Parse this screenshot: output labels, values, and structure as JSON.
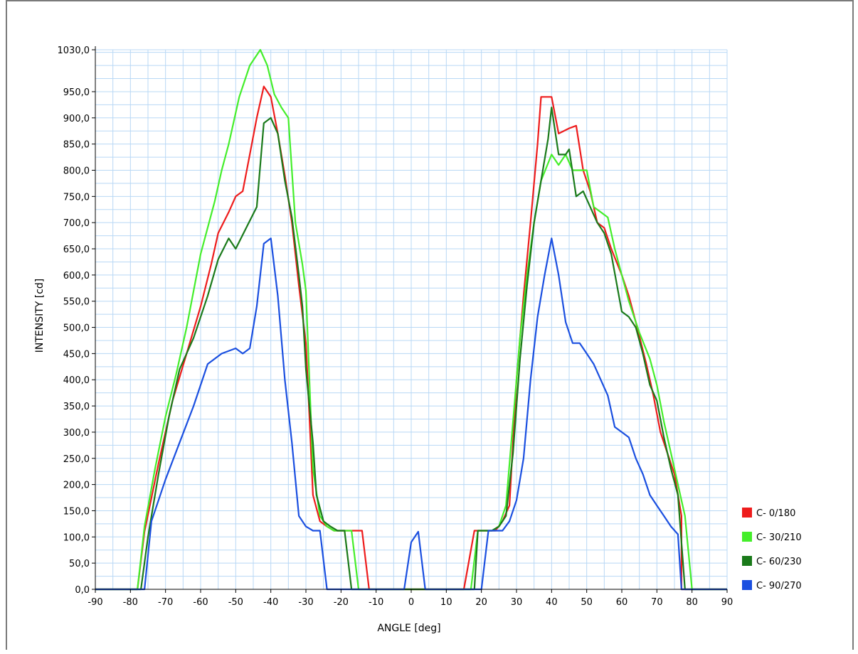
{
  "chart_data": {
    "type": "line",
    "xlabel": "ANGLE [deg]",
    "ylabel": "INTENSITY [cd]",
    "xlim": [
      -90,
      90
    ],
    "ylim": [
      0,
      1030
    ],
    "x_ticks": [
      -90,
      -80,
      -70,
      -60,
      -50,
      -40,
      -30,
      -20,
      -10,
      0,
      10,
      20,
      30,
      40,
      50,
      60,
      70,
      80,
      90
    ],
    "x_tick_labels": [
      "-90",
      "-80",
      "-70",
      "-60",
      "-50",
      "-40",
      "-30",
      "-20",
      "-10",
      "0",
      "10",
      "20",
      "30",
      "40",
      "50",
      "60",
      "70",
      "80",
      "90"
    ],
    "y_ticks": [
      0,
      50,
      100,
      150,
      200,
      250,
      300,
      350,
      400,
      450,
      500,
      550,
      600,
      650,
      700,
      750,
      800,
      850,
      900,
      950,
      1030
    ],
    "y_tick_labels": [
      "0,0",
      "50,0",
      "100,0",
      "150,0",
      "200,0",
      "250,0",
      "300,0",
      "350,0",
      "400,0",
      "450,0",
      "500,0",
      "550,0",
      "600,0",
      "650,0",
      "700,0",
      "750,0",
      "800,0",
      "850,0",
      "900,0",
      "950,0",
      "1030,0"
    ],
    "grid": true,
    "legend_position": "right-bottom",
    "series": [
      {
        "name": "C- 0/180",
        "color": "#ee1c1c",
        "points": [
          [
            -90,
            0
          ],
          [
            -78,
            0
          ],
          [
            -76,
            110
          ],
          [
            -72,
            240
          ],
          [
            -68,
            360
          ],
          [
            -64,
            450
          ],
          [
            -60,
            540
          ],
          [
            -57,
            620
          ],
          [
            -55,
            680
          ],
          [
            -52,
            720
          ],
          [
            -50,
            750
          ],
          [
            -48,
            760
          ],
          [
            -46,
            830
          ],
          [
            -44,
            900
          ],
          [
            -42,
            960
          ],
          [
            -40,
            940
          ],
          [
            -38,
            870
          ],
          [
            -36,
            790
          ],
          [
            -34,
            700
          ],
          [
            -32,
            580
          ],
          [
            -30,
            470
          ],
          [
            -29,
            330
          ],
          [
            -28,
            180
          ],
          [
            -26,
            130
          ],
          [
            -24,
            120
          ],
          [
            -22,
            112
          ],
          [
            -20,
            112
          ],
          [
            -17,
            112
          ],
          [
            -16,
            112
          ],
          [
            -14,
            112
          ],
          [
            -12,
            0
          ],
          [
            -10,
            0
          ],
          [
            15,
            0
          ],
          [
            18,
            112
          ],
          [
            20,
            112
          ],
          [
            22,
            112
          ],
          [
            24,
            112
          ],
          [
            26,
            130
          ],
          [
            28,
            160
          ],
          [
            30,
            400
          ],
          [
            32,
            560
          ],
          [
            34,
            700
          ],
          [
            36,
            850
          ],
          [
            37,
            940
          ],
          [
            38,
            940
          ],
          [
            40,
            940
          ],
          [
            42,
            870
          ],
          [
            45,
            880
          ],
          [
            47,
            885
          ],
          [
            49,
            800
          ],
          [
            51,
            760
          ],
          [
            53,
            700
          ],
          [
            55,
            690
          ],
          [
            57,
            650
          ],
          [
            60,
            600
          ],
          [
            62,
            560
          ],
          [
            64,
            510
          ],
          [
            67,
            430
          ],
          [
            69,
            370
          ],
          [
            71,
            300
          ],
          [
            73,
            260
          ],
          [
            75,
            220
          ],
          [
            77,
            140
          ],
          [
            77,
            0
          ],
          [
            90,
            0
          ]
        ]
      },
      {
        "name": "C- 30/210",
        "color": "#44ee2a",
        "points": [
          [
            -90,
            0
          ],
          [
            -78,
            0
          ],
          [
            -76,
            120
          ],
          [
            -73,
            230
          ],
          [
            -70,
            330
          ],
          [
            -67,
            410
          ],
          [
            -64,
            500
          ],
          [
            -60,
            640
          ],
          [
            -56,
            740
          ],
          [
            -54,
            800
          ],
          [
            -52,
            850
          ],
          [
            -49,
            940
          ],
          [
            -46,
            1000
          ],
          [
            -43,
            1030
          ],
          [
            -41,
            1000
          ],
          [
            -39,
            945
          ],
          [
            -37,
            920
          ],
          [
            -35,
            900
          ],
          [
            -33,
            700
          ],
          [
            -31,
            620
          ],
          [
            -30,
            570
          ],
          [
            -29,
            400
          ],
          [
            -28,
            230
          ],
          [
            -26,
            140
          ],
          [
            -24,
            120
          ],
          [
            -22,
            112
          ],
          [
            -20,
            112
          ],
          [
            -18,
            112
          ],
          [
            -17,
            112
          ],
          [
            -15,
            0
          ],
          [
            -12,
            0
          ],
          [
            15,
            0
          ],
          [
            17,
            0
          ],
          [
            19,
            112
          ],
          [
            21,
            112
          ],
          [
            23,
            112
          ],
          [
            25,
            120
          ],
          [
            27,
            160
          ],
          [
            29,
            320
          ],
          [
            31,
            480
          ],
          [
            33,
            600
          ],
          [
            35,
            700
          ],
          [
            37,
            780
          ],
          [
            40,
            830
          ],
          [
            42,
            810
          ],
          [
            44,
            830
          ],
          [
            46,
            800
          ],
          [
            48,
            800
          ],
          [
            50,
            800
          ],
          [
            52,
            730
          ],
          [
            54,
            720
          ],
          [
            56,
            710
          ],
          [
            58,
            650
          ],
          [
            60,
            600
          ],
          [
            62,
            550
          ],
          [
            65,
            490
          ],
          [
            68,
            440
          ],
          [
            70,
            390
          ],
          [
            72,
            320
          ],
          [
            74,
            260
          ],
          [
            76,
            200
          ],
          [
            78,
            140
          ],
          [
            80,
            0
          ],
          [
            90,
            0
          ]
        ]
      },
      {
        "name": "C- 60/230",
        "color": "#1a7a1a",
        "points": [
          [
            -90,
            0
          ],
          [
            -77,
            0
          ],
          [
            -75,
            100
          ],
          [
            -72,
            220
          ],
          [
            -69,
            330
          ],
          [
            -66,
            420
          ],
          [
            -62,
            480
          ],
          [
            -58,
            560
          ],
          [
            -55,
            630
          ],
          [
            -52,
            670
          ],
          [
            -50,
            650
          ],
          [
            -47,
            690
          ],
          [
            -44,
            730
          ],
          [
            -42,
            890
          ],
          [
            -40,
            900
          ],
          [
            -38,
            870
          ],
          [
            -36,
            780
          ],
          [
            -34,
            710
          ],
          [
            -32,
            600
          ],
          [
            -31,
            540
          ],
          [
            -30,
            420
          ],
          [
            -28,
            280
          ],
          [
            -27,
            180
          ],
          [
            -25,
            130
          ],
          [
            -23,
            120
          ],
          [
            -21,
            112
          ],
          [
            -20,
            112
          ],
          [
            -19,
            112
          ],
          [
            -17,
            0
          ],
          [
            -12,
            0
          ],
          [
            15,
            0
          ],
          [
            18,
            0
          ],
          [
            19,
            112
          ],
          [
            21,
            112
          ],
          [
            23,
            112
          ],
          [
            25,
            120
          ],
          [
            27,
            140
          ],
          [
            29,
            260
          ],
          [
            31,
            440
          ],
          [
            33,
            580
          ],
          [
            35,
            700
          ],
          [
            37,
            780
          ],
          [
            39,
            860
          ],
          [
            40,
            920
          ],
          [
            42,
            830
          ],
          [
            44,
            830
          ],
          [
            45,
            840
          ],
          [
            47,
            750
          ],
          [
            49,
            760
          ],
          [
            51,
            730
          ],
          [
            53,
            700
          ],
          [
            55,
            680
          ],
          [
            57,
            640
          ],
          [
            60,
            530
          ],
          [
            62,
            520
          ],
          [
            64,
            500
          ],
          [
            66,
            450
          ],
          [
            68,
            390
          ],
          [
            70,
            360
          ],
          [
            72,
            290
          ],
          [
            74,
            230
          ],
          [
            76,
            180
          ],
          [
            78,
            0
          ],
          [
            90,
            0
          ]
        ]
      },
      {
        "name": "C- 90/270",
        "color": "#1a4fe0",
        "points": [
          [
            -90,
            0
          ],
          [
            -76,
            0
          ],
          [
            -74,
            130
          ],
          [
            -70,
            210
          ],
          [
            -66,
            280
          ],
          [
            -62,
            350
          ],
          [
            -58,
            430
          ],
          [
            -54,
            450
          ],
          [
            -50,
            460
          ],
          [
            -48,
            450
          ],
          [
            -46,
            460
          ],
          [
            -44,
            540
          ],
          [
            -42,
            660
          ],
          [
            -40,
            670
          ],
          [
            -38,
            560
          ],
          [
            -36,
            400
          ],
          [
            -34,
            280
          ],
          [
            -32,
            140
          ],
          [
            -30,
            120
          ],
          [
            -28,
            112
          ],
          [
            -26,
            112
          ],
          [
            -24,
            0
          ],
          [
            -20,
            0
          ],
          [
            -2,
            0
          ],
          [
            0,
            90
          ],
          [
            2,
            110
          ],
          [
            4,
            0
          ],
          [
            20,
            0
          ],
          [
            22,
            112
          ],
          [
            24,
            112
          ],
          [
            26,
            112
          ],
          [
            28,
            130
          ],
          [
            30,
            170
          ],
          [
            32,
            250
          ],
          [
            34,
            400
          ],
          [
            36,
            520
          ],
          [
            38,
            600
          ],
          [
            40,
            670
          ],
          [
            42,
            600
          ],
          [
            44,
            510
          ],
          [
            46,
            470
          ],
          [
            48,
            470
          ],
          [
            50,
            450
          ],
          [
            52,
            430
          ],
          [
            54,
            400
          ],
          [
            56,
            370
          ],
          [
            58,
            310
          ],
          [
            60,
            300
          ],
          [
            62,
            290
          ],
          [
            64,
            250
          ],
          [
            66,
            220
          ],
          [
            68,
            180
          ],
          [
            70,
            160
          ],
          [
            72,
            140
          ],
          [
            74,
            120
          ],
          [
            76,
            105
          ],
          [
            77,
            0
          ],
          [
            90,
            0
          ]
        ]
      }
    ]
  }
}
